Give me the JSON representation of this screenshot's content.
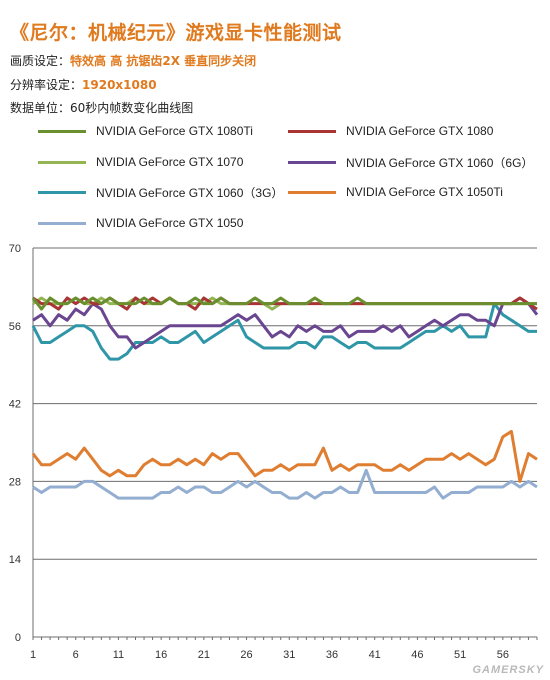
{
  "header": {
    "title": "《尼尔：机械纪元》游戏显卡性能测试",
    "quality_label": "画质设定：",
    "quality_value": "特效高 高 抗锯齿2X 垂直同步关闭",
    "resolution_label": "分辨率设定：",
    "resolution_value": "1920x1080",
    "unit_text": "数据单位：60秒内帧数变化曲线图"
  },
  "watermark": "GAMERSKY",
  "chart_data": {
    "type": "line",
    "title": "",
    "xlabel": "",
    "ylabel": "",
    "ylim": [
      0,
      70
    ],
    "y_ticks": [
      0,
      14,
      28,
      42,
      56,
      70
    ],
    "x_ticks": [
      1,
      6,
      11,
      16,
      21,
      26,
      31,
      36,
      41,
      46,
      51,
      56
    ],
    "grid": true,
    "legend_placement": "top",
    "x": [
      1,
      2,
      3,
      4,
      5,
      6,
      7,
      8,
      9,
      10,
      11,
      12,
      13,
      14,
      15,
      16,
      17,
      18,
      19,
      20,
      21,
      22,
      23,
      24,
      25,
      26,
      27,
      28,
      29,
      30,
      31,
      32,
      33,
      34,
      35,
      36,
      37,
      38,
      39,
      40,
      41,
      42,
      43,
      44,
      45,
      46,
      47,
      48,
      49,
      50,
      51,
      52,
      53,
      54,
      55,
      56,
      57,
      58,
      59,
      60
    ],
    "series": [
      {
        "name": "NVIDIA GeForce GTX 1080Ti",
        "color": "#6a8f2f",
        "values": [
          61,
          59,
          61,
          60,
          60,
          61,
          60,
          61,
          60,
          61,
          60,
          60,
          60,
          61,
          60,
          60,
          61,
          60,
          60,
          61,
          60,
          60,
          61,
          60,
          60,
          60,
          61,
          60,
          60,
          61,
          60,
          60,
          60,
          61,
          60,
          60,
          60,
          60,
          61,
          60,
          60,
          60,
          60,
          60,
          60,
          60,
          60,
          60,
          60,
          60,
          60,
          60,
          60,
          60,
          60,
          60,
          60,
          60,
          60,
          60
        ]
      },
      {
        "name": "NVIDIA GeForce GTX 1080",
        "color": "#a83434",
        "values": [
          61,
          60,
          60,
          59,
          61,
          60,
          61,
          60,
          60,
          61,
          60,
          59,
          61,
          60,
          61,
          60,
          61,
          60,
          60,
          59,
          61,
          60,
          61,
          60,
          60,
          60,
          60,
          60,
          60,
          60,
          60,
          60,
          60,
          60,
          60,
          60,
          60,
          60,
          60,
          60,
          60,
          60,
          60,
          60,
          60,
          60,
          60,
          60,
          60,
          60,
          60,
          60,
          60,
          60,
          60,
          60,
          60,
          61,
          60,
          59
        ]
      },
      {
        "name": "NVIDIA GeForce GTX 1070",
        "color": "#93b554",
        "values": [
          60,
          61,
          60,
          60,
          60,
          61,
          60,
          60,
          61,
          60,
          60,
          60,
          61,
          60,
          60,
          60,
          61,
          60,
          60,
          60,
          60,
          61,
          60,
          60,
          60,
          60,
          61,
          60,
          59,
          60,
          60,
          60,
          60,
          61,
          60,
          60,
          60,
          60,
          60,
          60,
          60,
          60,
          60,
          60,
          60,
          60,
          60,
          60,
          60,
          60,
          60,
          60,
          60,
          60,
          60,
          60,
          60,
          60,
          60,
          60
        ]
      },
      {
        "name": "NVIDIA GeForce GTX 1060（6G）",
        "color": "#6a4590",
        "values": [
          57,
          58,
          56,
          58,
          57,
          59,
          58,
          60,
          59,
          56,
          54,
          54,
          52,
          53,
          54,
          55,
          56,
          56,
          56,
          56,
          56,
          56,
          56,
          57,
          58,
          57,
          58,
          56,
          54,
          55,
          54,
          56,
          55,
          56,
          55,
          55,
          56,
          54,
          55,
          55,
          55,
          56,
          55,
          56,
          54,
          55,
          56,
          57,
          56,
          57,
          58,
          58,
          57,
          57,
          56,
          60,
          60,
          61,
          60,
          58
        ]
      },
      {
        "name": "NVIDIA GeForce GTX 1060（3G）",
        "color": "#2f96a8",
        "values": [
          56,
          53,
          53,
          54,
          55,
          56,
          56,
          55,
          52,
          50,
          50,
          51,
          53,
          53,
          53,
          54,
          53,
          53,
          54,
          55,
          53,
          54,
          55,
          56,
          57,
          54,
          53,
          52,
          52,
          52,
          52,
          53,
          53,
          52,
          54,
          54,
          53,
          52,
          53,
          53,
          52,
          52,
          52,
          52,
          53,
          54,
          55,
          55,
          56,
          55,
          56,
          54,
          54,
          54,
          60,
          58,
          57,
          56,
          55,
          55
        ]
      },
      {
        "name": "NVIDIA GeForce GTX 1050Ti",
        "color": "#df7d30",
        "values": [
          33,
          31,
          31,
          32,
          33,
          32,
          34,
          32,
          30,
          29,
          30,
          29,
          29,
          31,
          32,
          31,
          31,
          32,
          31,
          32,
          31,
          33,
          32,
          33,
          33,
          31,
          29,
          30,
          30,
          31,
          30,
          31,
          31,
          31,
          34,
          30,
          31,
          30,
          31,
          31,
          31,
          30,
          30,
          31,
          30,
          31,
          32,
          32,
          32,
          33,
          32,
          33,
          32,
          31,
          32,
          36,
          37,
          28,
          33,
          32
        ]
      },
      {
        "name": "NVIDIA GeForce GTX 1050",
        "color": "#93aed0",
        "values": [
          27,
          26,
          27,
          27,
          27,
          27,
          28,
          28,
          27,
          26,
          25,
          25,
          25,
          25,
          25,
          26,
          26,
          27,
          26,
          27,
          27,
          26,
          26,
          27,
          28,
          27,
          28,
          27,
          26,
          26,
          25,
          25,
          26,
          25,
          26,
          26,
          27,
          26,
          26,
          30,
          26,
          26,
          26,
          26,
          26,
          26,
          26,
          27,
          25,
          26,
          26,
          26,
          27,
          27,
          27,
          27,
          28,
          27,
          28,
          27
        ]
      }
    ]
  }
}
